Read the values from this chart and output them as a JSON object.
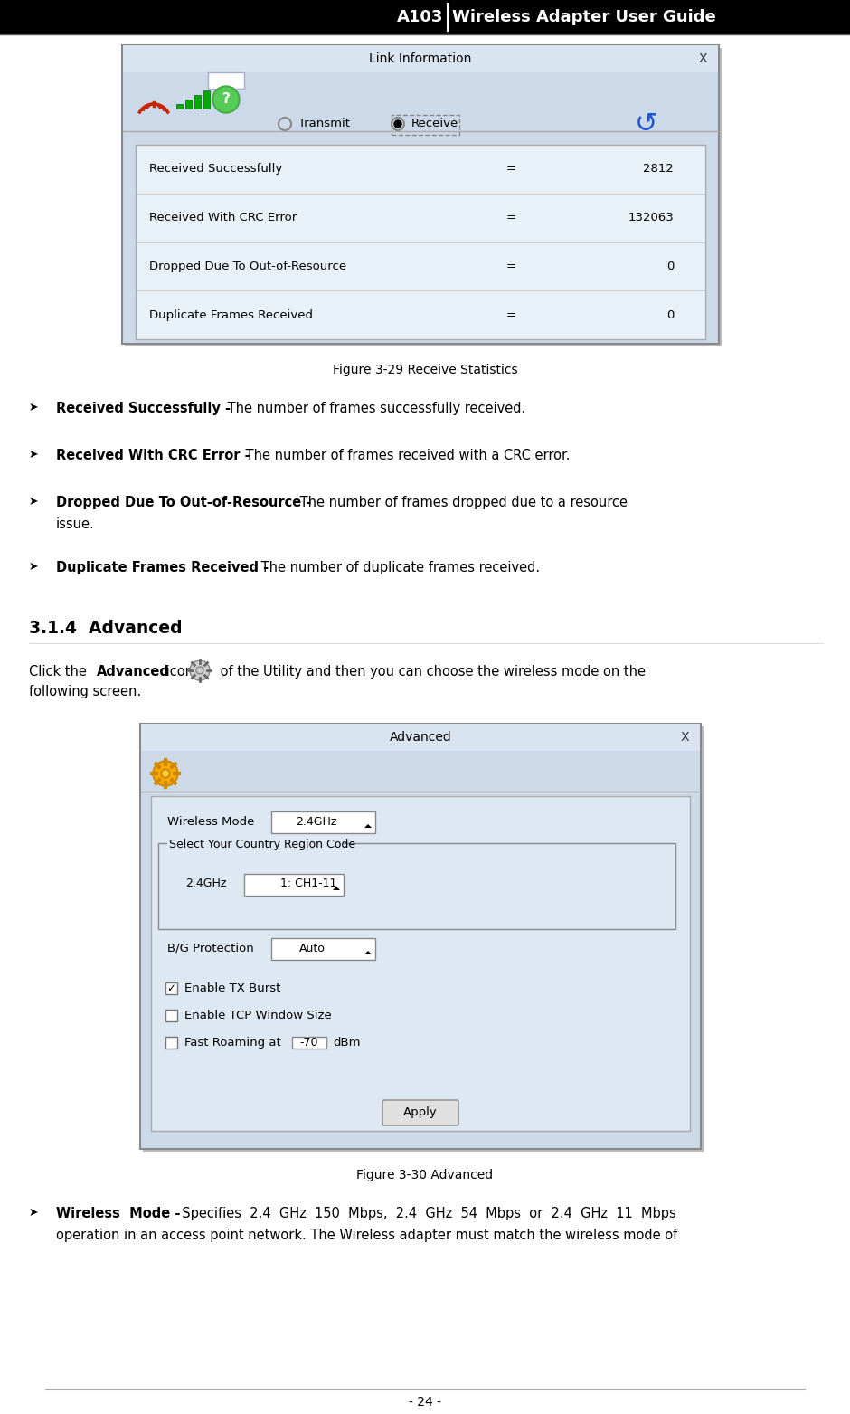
{
  "page_title_left": "A103",
  "page_title_right": "Wireless Adapter User Guide",
  "page_number": "- 24 -",
  "fig1_caption": "Figure 3-29 Receive Statistics",
  "fig2_caption": "Figure 3-30 Advanced",
  "fig1_title": "Link Information",
  "fig1_rows": [
    [
      "Received Successfully",
      "=",
      "2812"
    ],
    [
      "Received With CRC Error",
      "=",
      "132063"
    ],
    [
      "Dropped Due To Out-of-Resource",
      "=",
      "0"
    ],
    [
      "Duplicate Frames Received",
      "=",
      "0"
    ]
  ],
  "fig2_title": "Advanced",
  "bg_color": "#ffffff",
  "header_bg": "#000000",
  "header_text_color": "#ffffff",
  "dialog_bg": "#ccd9e8",
  "dialog_inner_bg": "#dce8f5",
  "dialog_border": "#aaaaaa"
}
